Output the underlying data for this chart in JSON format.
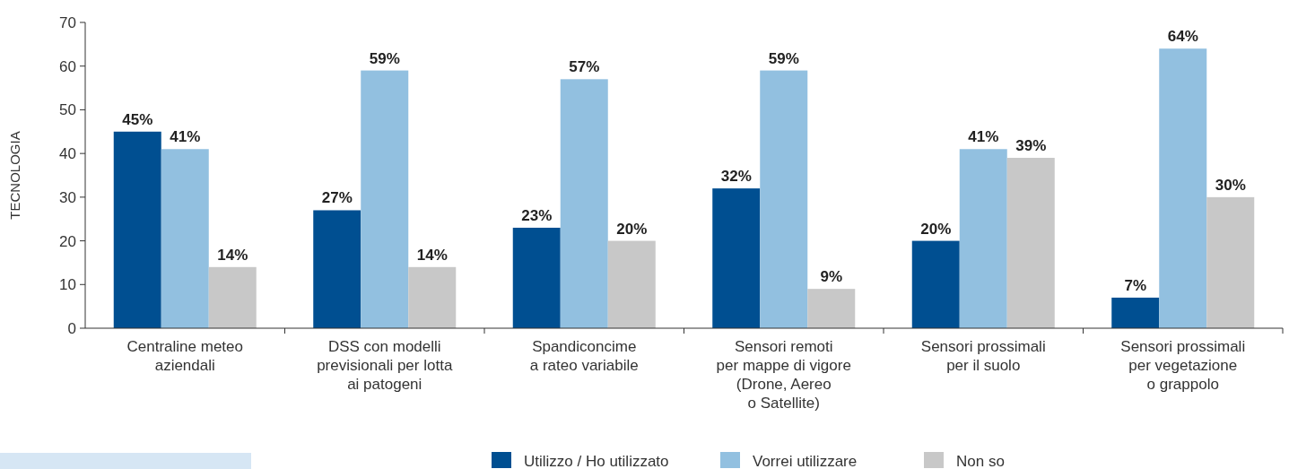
{
  "chart_data": {
    "type": "bar",
    "ylabel": "TECNOLOGIA",
    "categories": [
      "Centraline meteo\naziendali",
      "DSS con modelli\nprevisionali per lotta\nai patogeni",
      "Spandiconcime\na rateo variabile",
      "Sensori remoti\nper mappe di vigore\n(Drone, Aereo\no Satellite)",
      "Sensori prossimali\nper il suolo",
      "Sensori prossimali\nper vegetazione\no grappolo"
    ],
    "series": [
      {
        "name": "Utilizzo / Ho utilizzato",
        "color": "#004f91",
        "values": [
          45,
          27,
          23,
          32,
          20,
          7
        ],
        "value_labels": [
          "45%",
          "27%",
          "23%",
          "32%",
          "20%",
          "7%"
        ]
      },
      {
        "name": "Vorrei utilizzare",
        "color": "#92c0e0",
        "values": [
          41,
          59,
          57,
          59,
          41,
          64
        ],
        "value_labels": [
          "41%",
          "59%",
          "57%",
          "59%",
          "41%",
          "64%"
        ]
      },
      {
        "name": "Non so",
        "color": "#c8c8c8",
        "values": [
          14,
          14,
          20,
          9,
          39,
          30
        ],
        "value_labels": [
          "14%",
          "14%",
          "20%",
          "9%",
          "39%",
          "30%"
        ]
      }
    ],
    "ylim": [
      0,
      70
    ],
    "yticks": [
      0,
      10,
      20,
      30,
      40,
      50,
      60,
      70
    ],
    "legend": "bottom"
  }
}
